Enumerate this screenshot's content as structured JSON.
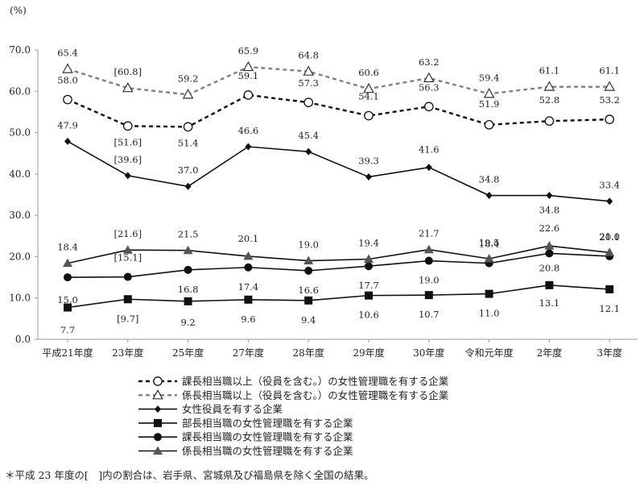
{
  "chart_data": {
    "type": "line",
    "y_unit": "(%)",
    "categories": [
      "平成21年度",
      "23年度",
      "25年度",
      "27年度",
      "28年度",
      "29年度",
      "30年度",
      "令和元年度",
      "2年度",
      "3年度"
    ],
    "ylim": [
      0,
      70
    ],
    "yticks": [
      "0.0",
      "10.0",
      "20.0",
      "30.0",
      "40.0",
      "50.0",
      "60.0",
      "70.0"
    ],
    "grid": false,
    "legend_position": "bottom",
    "series": [
      {
        "name": "課長相当職以上（役員を含む。）の女性管理職を有する企業",
        "values": [
          58.0,
          51.6,
          51.4,
          59.1,
          57.3,
          54.1,
          56.3,
          51.9,
          52.8,
          53.2
        ],
        "labels": [
          "58.0",
          "[51.6]",
          "51.4",
          "59.1",
          "57.3",
          "54.1",
          "56.3",
          "51.9",
          "52.8",
          "53.2"
        ],
        "color": "#111111",
        "line": "dashed",
        "marker": "open-circle"
      },
      {
        "name": "係長相当職以上（役員を含む。）の女性管理職を有する企業",
        "values": [
          65.4,
          60.8,
          59.2,
          65.9,
          64.8,
          60.6,
          63.2,
          59.4,
          61.1,
          61.1
        ],
        "labels": [
          "65.4",
          "[60.8]",
          "59.2",
          "65.9",
          "64.8",
          "60.6",
          "63.2",
          "59.4",
          "61.1",
          "61.1"
        ],
        "color": "#808080",
        "line": "dashed",
        "marker": "open-triangle"
      },
      {
        "name": "女性役員を有する企業",
        "values": [
          47.9,
          39.6,
          37.0,
          46.6,
          45.4,
          39.3,
          41.6,
          34.8,
          34.8,
          33.4
        ],
        "labels": [
          "47.9",
          "[39.6]",
          "37.0",
          "46.6",
          "45.4",
          "39.3",
          "41.6",
          "34.8",
          "34.8",
          "33.4"
        ],
        "color": "#111111",
        "line": "solid",
        "marker": "diamond"
      },
      {
        "name": "部長相当職の女性管理職を有する企業",
        "values": [
          7.7,
          9.7,
          9.2,
          9.6,
          9.4,
          10.6,
          10.7,
          11.0,
          13.1,
          12.1
        ],
        "labels": [
          "7.7",
          "[9.7]",
          "9.2",
          "9.6",
          "9.4",
          "10.6",
          "10.7",
          "11.0",
          "13.1",
          "12.1"
        ],
        "color": "#111111",
        "line": "solid",
        "marker": "square"
      },
      {
        "name": "課長相当職の女性管理職を有する企業",
        "values": [
          15.0,
          15.1,
          16.8,
          17.4,
          16.6,
          17.7,
          19.0,
          18.4,
          20.8,
          20.1
        ],
        "labels": [
          "15.0",
          "[15.1]",
          "16.8",
          "17.4",
          "16.6",
          "17.7",
          "19.0",
          "18.4",
          "20.8",
          "20.1"
        ],
        "color": "#111111",
        "line": "solid",
        "marker": "circle"
      },
      {
        "name": "係長相当職の女性管理職を有する企業",
        "values": [
          18.4,
          21.6,
          21.5,
          20.1,
          19.0,
          19.4,
          21.7,
          19.5,
          22.6,
          21.0
        ],
        "labels": [
          "18.4",
          "[21.6]",
          "21.5",
          "20.1",
          "19.0",
          "19.4",
          "21.7",
          "19.5",
          "22.6",
          "21.0"
        ],
        "color": "#111111",
        "line": "solid",
        "marker": "triangle"
      }
    ]
  },
  "footnote": "＊平成 23 年度の[　]内の割合は、岩手県、宮城県及び福島県を除く全国の結果。"
}
